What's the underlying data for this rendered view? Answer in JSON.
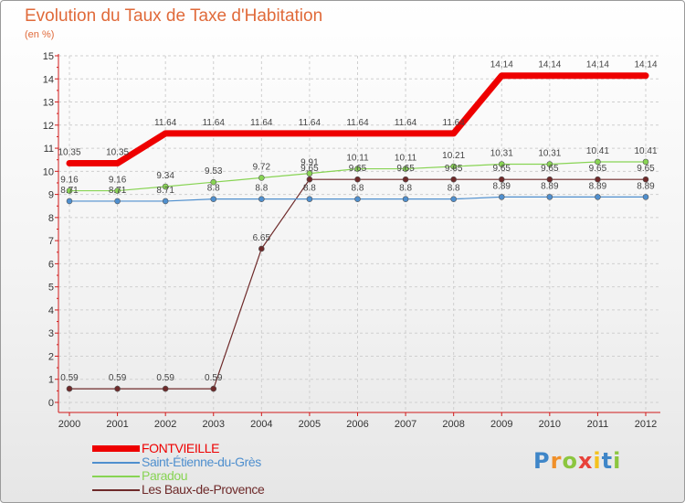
{
  "chart_data": {
    "type": "line",
    "title": "Evolution du Taux de Taxe d'Habitation",
    "subtitle": "(en %)",
    "x": [
      "2000",
      "2001",
      "2002",
      "2003",
      "2004",
      "2005",
      "2006",
      "2007",
      "2008",
      "2009",
      "2010",
      "2011",
      "2012"
    ],
    "ylim": [
      0,
      15
    ],
    "yticks": [
      "0",
      "1",
      "2",
      "3",
      "4",
      "5",
      "6",
      "7",
      "8",
      "9",
      "10",
      "11",
      "12",
      "13",
      "14",
      "15"
    ],
    "grid": true,
    "legend_position": "bottom-left",
    "series": [
      {
        "name": "FONTVIEILLE",
        "color": "#ee0000",
        "values": [
          10.35,
          10.35,
          11.64,
          11.64,
          11.64,
          11.64,
          11.64,
          11.64,
          11.64,
          14.14,
          14.14,
          14.14,
          14.14
        ],
        "labels": [
          "10.35",
          "10.35",
          "11.64",
          "11.64",
          "11.64",
          "11.64",
          "11.64",
          "11.64",
          "11.64",
          "14.14",
          "14.14",
          "14.14",
          "14.14"
        ]
      },
      {
        "name": "Saint-Étienne-du-Grès",
        "color": "#4f8fce",
        "values": [
          8.71,
          8.71,
          8.71,
          8.8,
          8.8,
          8.8,
          8.8,
          8.8,
          8.8,
          8.89,
          8.89,
          8.89,
          8.89
        ],
        "labels": [
          "8.71",
          "8.71",
          "8.71",
          "8.8",
          "8.8",
          "8.8",
          "8.8",
          "8.8",
          "8.8",
          "8.89",
          "8.89",
          "8.89",
          "8.89"
        ]
      },
      {
        "name": "Paradou",
        "color": "#88d454",
        "values": [
          9.16,
          9.16,
          9.34,
          9.53,
          9.72,
          9.91,
          10.11,
          10.11,
          10.21,
          10.31,
          10.31,
          10.41,
          10.41
        ],
        "labels": [
          "9.16",
          "9.16",
          "9.34",
          "9.53",
          "9.72",
          "9.91",
          "10.11",
          "10.11",
          "10.21",
          "10.31",
          "10.31",
          "10.41",
          "10.41"
        ]
      },
      {
        "name": "Les Baux-de-Provence",
        "color": "#6e2a2a",
        "values": [
          0.59,
          0.59,
          0.59,
          0.59,
          6.65,
          9.65,
          9.65,
          9.65,
          9.65,
          9.65,
          9.65,
          9.65,
          9.65
        ],
        "labels": [
          "0.59",
          "0.59",
          "0.59",
          "0.59",
          "6.65",
          "9.65",
          "9.65",
          "9.65",
          "9.65",
          "9.65",
          "9.65",
          "9.65",
          "9.65"
        ]
      }
    ]
  },
  "brand": {
    "letters": [
      "P",
      "r",
      "o",
      "x",
      "i",
      "t",
      "i"
    ],
    "colors": [
      "#3f86c8",
      "#f0902a",
      "#8cc63f",
      "#e8423a",
      "#f4c21e",
      "#3f86c8",
      "#8cc63f"
    ]
  }
}
